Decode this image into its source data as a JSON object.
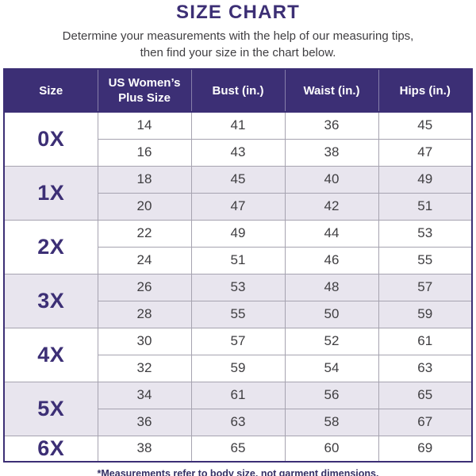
{
  "title": "SIZE CHART",
  "subtitle": {
    "line1": "Determine your measurements with the help of our measuring tips,",
    "line2": "then find your size in the chart below."
  },
  "footnote": "*Measurements refer to body size, not garment dimensions.",
  "colors": {
    "indigo": "#3C2F75",
    "lavender_row": "#E8E5EE",
    "body_text": "#3F3E41",
    "grid_line": "#A6A3B0",
    "header_text": "#FFFFFF"
  },
  "chart_data": {
    "type": "table",
    "title": "SIZE CHART",
    "columns": [
      "Size",
      "US Women’s Plus Size",
      "Bust (in.)",
      "Waist (in.)",
      "Hips (in.)"
    ],
    "groups": [
      {
        "size": "0X",
        "rows": [
          [
            14,
            41,
            36,
            45
          ],
          [
            16,
            43,
            38,
            47
          ]
        ]
      },
      {
        "size": "1X",
        "rows": [
          [
            18,
            45,
            40,
            49
          ],
          [
            20,
            47,
            42,
            51
          ]
        ]
      },
      {
        "size": "2X",
        "rows": [
          [
            22,
            49,
            44,
            53
          ],
          [
            24,
            51,
            46,
            55
          ]
        ]
      },
      {
        "size": "3X",
        "rows": [
          [
            26,
            53,
            48,
            57
          ],
          [
            28,
            55,
            50,
            59
          ]
        ]
      },
      {
        "size": "4X",
        "rows": [
          [
            30,
            57,
            52,
            61
          ],
          [
            32,
            59,
            54,
            63
          ]
        ]
      },
      {
        "size": "5X",
        "rows": [
          [
            34,
            61,
            56,
            65
          ],
          [
            36,
            63,
            58,
            67
          ]
        ]
      },
      {
        "size": "6X",
        "rows": [
          [
            38,
            65,
            60,
            69
          ]
        ]
      }
    ]
  }
}
